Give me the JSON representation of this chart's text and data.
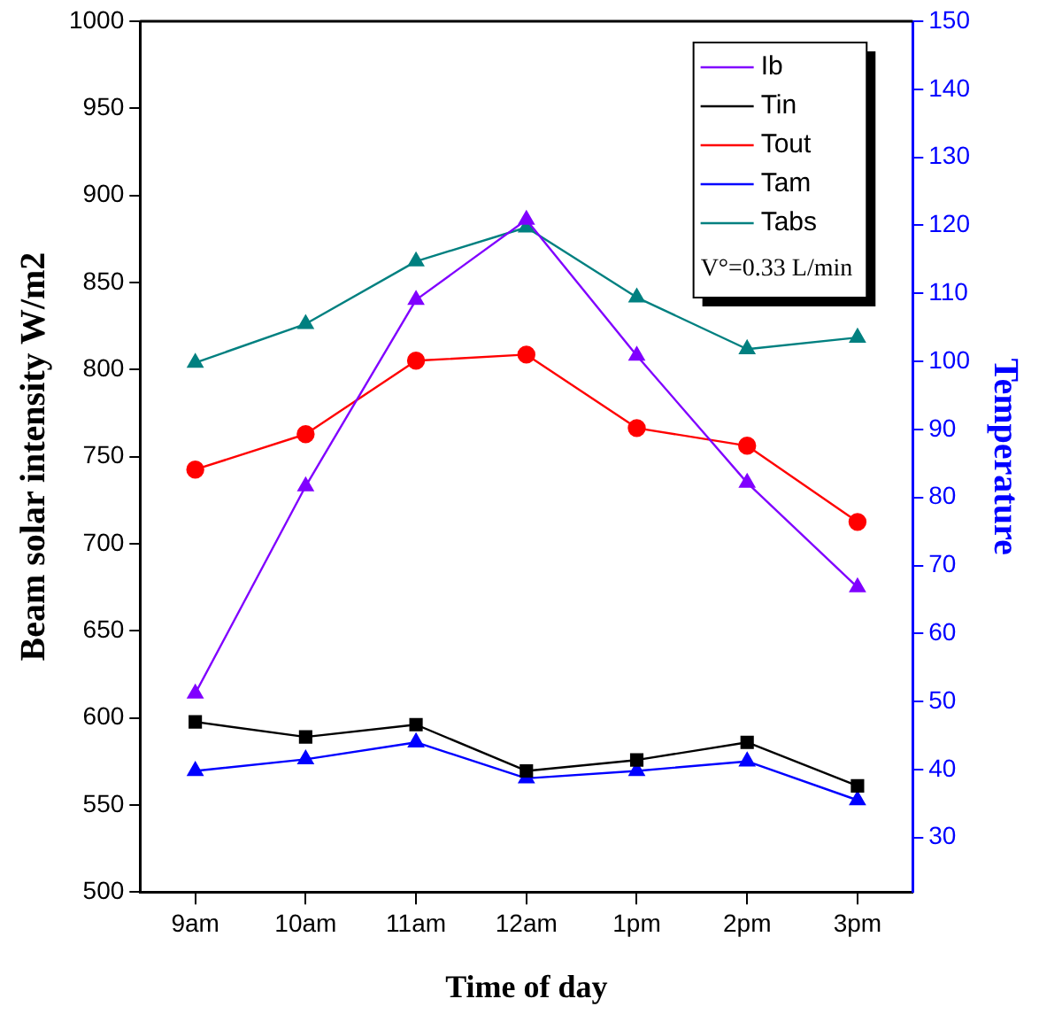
{
  "chart_data": {
    "type": "line",
    "xlabel": "Time of day",
    "ylabel": "Beam solar intensity W/m2",
    "y2label": "Temperature",
    "categories": [
      "9am",
      "10am",
      "11am",
      "12am",
      "1pm",
      "2pm",
      "3pm"
    ],
    "series": [
      {
        "name": "Ib",
        "color": "#8000ff",
        "marker": "triangle",
        "values": [
          614,
          733,
          840,
          886,
          808,
          735,
          675
        ]
      },
      {
        "name": "Tin",
        "color": "#000000",
        "marker": "square",
        "axis": "y2",
        "values": [
          47,
          44.8,
          46.6,
          39.8,
          41.4,
          44,
          37.6
        ]
      },
      {
        "name": "Tout",
        "color": "#ff0000",
        "marker": "circle",
        "axis": "y2",
        "values": [
          84.1,
          89.3,
          100.1,
          101,
          90.2,
          87.6,
          76.4
        ]
      },
      {
        "name": "Tam",
        "color": "#0000ff",
        "marker": "triangle",
        "axis": "y2",
        "values": [
          39.8,
          41.5,
          44,
          38.7,
          39.8,
          41.2,
          35.5
        ]
      },
      {
        "name": "Tabs",
        "color": "#008080",
        "marker": "triangle",
        "axis": "y2",
        "values": [
          99.8,
          105.5,
          114.7,
          119.7,
          109.4,
          101.8,
          103.5
        ]
      }
    ],
    "ylim": [
      500,
      1000
    ],
    "yticks": [
      500,
      550,
      600,
      650,
      700,
      750,
      800,
      850,
      900,
      950,
      1000
    ],
    "y2lim": [
      22,
      150
    ],
    "y2ticks": [
      30,
      40,
      50,
      60,
      70,
      80,
      90,
      100,
      110,
      120,
      130,
      140,
      150
    ],
    "legend": "top right",
    "grid": false,
    "annotations": [
      "V°=0.33 L/min"
    ]
  }
}
